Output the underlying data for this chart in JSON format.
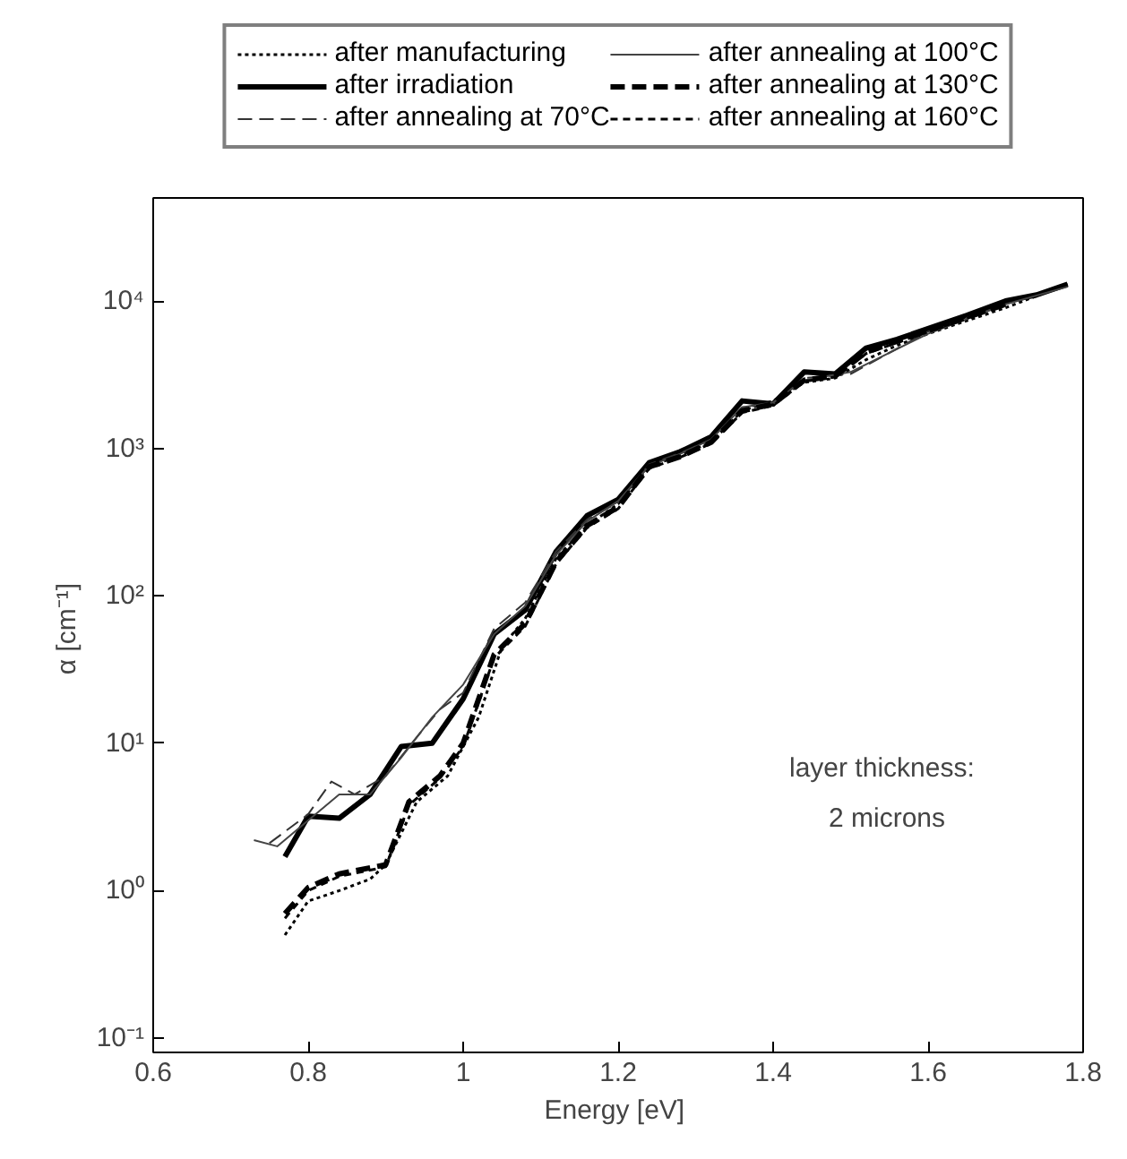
{
  "chart_data": {
    "type": "line",
    "xlabel": "Energy  [eV]",
    "ylabel": "α  [cm⁻¹]",
    "log": "y",
    "grid": false,
    "legend": "top",
    "xlim": [
      0.6,
      1.8
    ],
    "ylim": [
      0.08,
      50000
    ],
    "xticks": [
      0.6,
      0.8,
      1,
      1.2,
      1.4,
      1.6,
      1.8
    ],
    "yticks": [
      {
        "value": 0.1,
        "label": "10⁻¹"
      },
      {
        "value": 1,
        "label": "10⁰"
      },
      {
        "value": 10,
        "label": "10¹"
      },
      {
        "value": 100,
        "label": "10²"
      },
      {
        "value": 1000,
        "label": "10³"
      },
      {
        "value": 10000,
        "label": "10⁴"
      }
    ],
    "annotations": [
      "layer  thickness:",
      "2  microns"
    ],
    "series": [
      {
        "name": "after manufacturing",
        "color": "#000000",
        "line_style": "dotted",
        "x": [
          0.77,
          0.8,
          0.84,
          0.88,
          0.9,
          0.94,
          0.98,
          1.02,
          1.05,
          1.08,
          1.12,
          1.16,
          1.2,
          1.24,
          1.28,
          1.32,
          1.36,
          1.4,
          1.44,
          1.48,
          1.52,
          1.56,
          1.6,
          1.7,
          1.78
        ],
        "values": [
          0.5,
          0.85,
          1.0,
          1.2,
          1.5,
          4,
          6,
          15,
          45,
          70,
          180,
          300,
          420,
          750,
          900,
          1100,
          1800,
          2100,
          2800,
          3000,
          4000,
          5000,
          6000,
          9000,
          13000
        ]
      },
      {
        "name": "after irradiation",
        "color": "#000000",
        "line_style": "solid",
        "x": [
          0.77,
          0.8,
          0.84,
          0.88,
          0.92,
          0.96,
          1.0,
          1.04,
          1.08,
          1.12,
          1.16,
          1.2,
          1.24,
          1.28,
          1.32,
          1.36,
          1.4,
          1.44,
          1.48,
          1.52,
          1.56,
          1.6,
          1.65,
          1.7,
          1.74,
          1.78
        ],
        "values": [
          1.7,
          3.2,
          3.1,
          4.5,
          9.5,
          10,
          20,
          55,
          80,
          200,
          350,
          450,
          800,
          950,
          1200,
          2100,
          2000,
          3300,
          3200,
          4800,
          5500,
          6500,
          8000,
          10000,
          11000,
          13000
        ]
      },
      {
        "name": "after annealing at 70°C",
        "color": "#333333",
        "line_style": "dashed",
        "x": [
          0.75,
          0.8,
          0.83,
          0.86,
          0.9,
          0.94,
          0.97,
          1.0,
          1.04,
          1.08,
          1.12,
          1.16,
          1.2,
          1.24,
          1.28,
          1.32,
          1.36,
          1.4,
          1.44,
          1.5,
          1.6,
          1.7
        ],
        "values": [
          2.1,
          3.3,
          5.5,
          4.5,
          6,
          11,
          17,
          22,
          60,
          90,
          200,
          330,
          430,
          780,
          930,
          1150,
          1900,
          2000,
          3000,
          3200,
          6200,
          9500
        ]
      },
      {
        "name": "after annealing at 100°C",
        "color": "#444444",
        "line_style": "solid",
        "x": [
          0.73,
          0.76,
          0.8,
          0.84,
          0.88,
          0.92,
          0.96,
          1.0,
          1.04,
          1.08,
          1.12,
          1.16,
          1.2,
          1.24,
          1.28,
          1.32,
          1.36,
          1.4,
          1.44,
          1.5,
          1.6,
          1.7,
          1.78
        ],
        "values": [
          2.2,
          2.0,
          3.0,
          4.5,
          4.5,
          8,
          15,
          25,
          55,
          85,
          190,
          320,
          440,
          760,
          920,
          1150,
          1900,
          2050,
          2900,
          3300,
          6000,
          9500,
          12500
        ]
      },
      {
        "name": "after annealing at 130°C",
        "color": "#000000",
        "line_style": "dashed",
        "x": [
          0.77,
          0.8,
          0.84,
          0.9,
          0.93,
          0.97,
          1.0,
          1.04,
          1.08,
          1.12,
          1.16,
          1.2,
          1.24,
          1.28,
          1.32,
          1.36,
          1.4,
          1.44,
          1.48,
          1.52,
          1.6,
          1.7
        ],
        "values": [
          0.7,
          1.05,
          1.3,
          1.5,
          4,
          6,
          10,
          40,
          65,
          170,
          300,
          400,
          750,
          880,
          1100,
          1800,
          2000,
          2900,
          3100,
          4500,
          6300,
          9500
        ]
      },
      {
        "name": "after annealing at 160°C",
        "color": "#000000",
        "line_style": "dashed",
        "x": [
          0.77,
          0.8,
          0.84,
          0.9,
          0.93,
          0.97,
          1.0,
          1.04,
          1.08,
          1.12,
          1.16,
          1.2,
          1.24,
          1.28,
          1.32,
          1.36,
          1.4,
          1.44,
          1.48,
          1.52,
          1.6,
          1.7
        ],
        "values": [
          0.65,
          1.0,
          1.25,
          1.45,
          3.8,
          5.8,
          9.5,
          38,
          62,
          165,
          290,
          390,
          730,
          870,
          1080,
          1750,
          1950,
          2850,
          3050,
          4400,
          6200,
          9400
        ]
      }
    ]
  }
}
